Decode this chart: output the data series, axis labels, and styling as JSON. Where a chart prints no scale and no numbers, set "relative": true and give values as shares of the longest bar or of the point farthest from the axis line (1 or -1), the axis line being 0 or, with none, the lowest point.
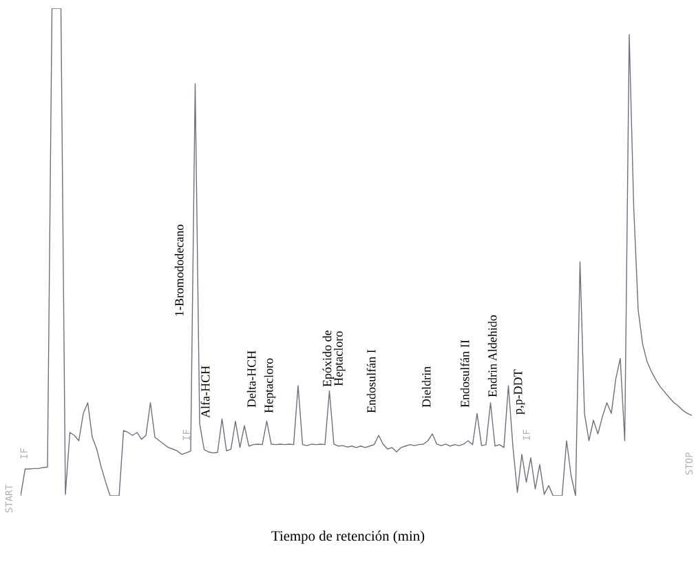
{
  "chart_data": {
    "type": "line",
    "relative": true,
    "xlabel": "Tiempo de retención (min)",
    "color": "#6e6e80",
    "line_style": "solid",
    "categories": [
      null,
      null,
      null,
      null,
      null,
      null,
      null,
      null,
      null,
      null,
      null,
      null,
      null,
      null,
      null,
      null,
      null,
      null,
      null,
      null,
      null,
      null,
      null,
      null,
      null,
      null,
      null,
      null,
      null,
      null,
      null,
      null,
      null,
      null,
      null,
      null,
      null,
      null,
      null,
      null,
      null,
      null,
      null,
      null,
      null,
      null,
      null,
      null,
      null,
      null,
      null,
      null,
      null,
      null,
      null,
      null,
      null,
      null,
      null,
      null,
      null,
      null,
      null,
      null,
      null,
      null,
      null,
      null,
      null,
      null,
      null,
      null,
      null,
      null,
      null,
      null,
      null,
      null,
      null,
      null,
      null,
      null,
      null,
      null,
      null,
      null,
      null,
      null,
      null,
      null,
      null,
      null,
      null,
      null,
      null,
      null,
      null,
      null,
      null,
      null,
      null,
      null,
      null,
      null,
      null,
      null,
      null,
      null,
      null,
      null,
      null,
      null,
      null,
      null,
      null,
      null,
      null,
      null,
      null,
      null,
      null,
      null,
      null,
      null,
      null,
      null,
      null,
      null,
      null,
      null,
      null,
      null,
      null,
      null,
      null,
      null,
      null,
      null,
      null,
      null,
      null,
      null,
      null,
      null,
      null,
      null,
      null,
      null,
      null,
      null,
      null
    ],
    "values": [
      0,
      0.055,
      0.055,
      0.056,
      0.056,
      0.058,
      0.059,
      1.0,
      1.0,
      1.0,
      0.003,
      0.13,
      0.124,
      0.113,
      0.169,
      0.191,
      0.12,
      0.096,
      0.059,
      0.028,
      0,
      0,
      0,
      0.134,
      0.13,
      0.124,
      0.13,
      0.116,
      0.124,
      0.191,
      0.12,
      0.113,
      0.106,
      0.099,
      0.096,
      0.092,
      0.085,
      0.088,
      0.092,
      0.845,
      0.148,
      0.095,
      0.09,
      0.088,
      0.089,
      0.158,
      0.092,
      0.096,
      0.153,
      0.099,
      0.144,
      0.102,
      0.105,
      0.106,
      0.105,
      0.153,
      0.106,
      0.105,
      0.106,
      0.105,
      0.106,
      0.105,
      0.226,
      0.105,
      0.103,
      0.106,
      0.105,
      0.106,
      0.105,
      0.215,
      0.106,
      0.102,
      0.103,
      0.1,
      0.102,
      0.099,
      0.102,
      0.099,
      0.102,
      0.105,
      0.124,
      0.106,
      0.096,
      0.099,
      0.09,
      0.099,
      0.102,
      0.105,
      0.103,
      0.105,
      0.106,
      0.113,
      0.127,
      0.106,
      0.103,
      0.106,
      0.102,
      0.105,
      0.103,
      0.106,
      0.113,
      0.105,
      0.169,
      0.103,
      0.105,
      0.191,
      0.102,
      0.105,
      0.099,
      0.226,
      0.102,
      0.007,
      0.085,
      0.028,
      0.078,
      0.014,
      0.064,
      0.003,
      0.021,
      0,
      0,
      0,
      0.113,
      0.042,
      0,
      0.48,
      0.169,
      0.113,
      0.155,
      0.127,
      0.162,
      0.191,
      0.169,
      0.24,
      0.282,
      0.113,
      0.946,
      0.593,
      0.381,
      0.311,
      0.275,
      0.254,
      0.237,
      0.223,
      0.212,
      0.201,
      0.191,
      0.184,
      0.175,
      0.169,
      0.165
    ],
    "annotations": [
      "1-Bromododecano",
      "Alfa-HCH",
      "Delta-HCH",
      "Heptacloro",
      "Epóxido de\nHeptacloro",
      "Endosulfán I",
      "Dieldrin",
      "Endosulfán II",
      "Endrin Aldehido",
      "p,p-DDT",
      "START",
      "IF",
      "IF",
      "IF",
      "STOP"
    ]
  }
}
